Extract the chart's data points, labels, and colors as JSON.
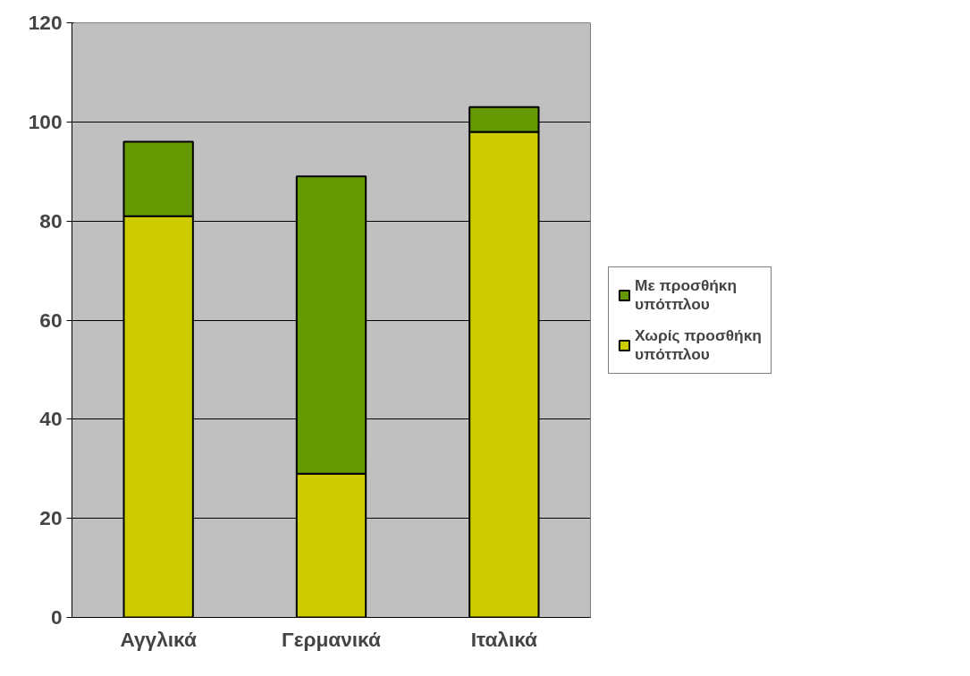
{
  "chart_data": {
    "type": "bar",
    "stacked": true,
    "categories": [
      "Αγγλικά",
      "Γερμανικά",
      "Ιταλικά"
    ],
    "series": [
      {
        "name": "Χωρίς προσθήκη υπότπλου",
        "color": "#cccc00",
        "values": [
          81,
          29,
          98
        ]
      },
      {
        "name": "Με προσθήκη υπότπλου",
        "color": "#669900",
        "values": [
          15,
          60,
          5
        ]
      }
    ],
    "ylim": [
      0,
      120
    ],
    "yticks": [
      0,
      20,
      40,
      60,
      80,
      100,
      120
    ],
    "grid": "y",
    "legend": "right"
  }
}
